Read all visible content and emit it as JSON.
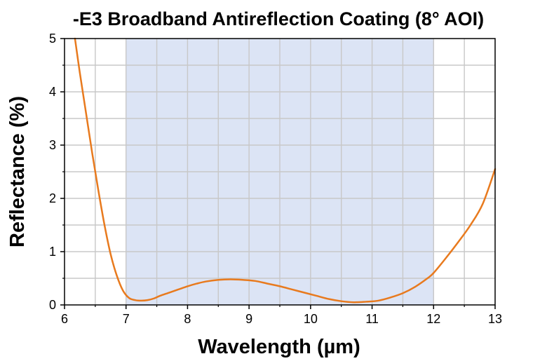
{
  "chart_data": {
    "type": "line",
    "title": "-E3 Broadband Antireflection Coating (8° AOI)",
    "xlabel": "Wavelength (µm)",
    "ylabel": "Reflectance (%)",
    "xlim": [
      6,
      13
    ],
    "ylim": [
      0,
      5
    ],
    "xticks": [
      "6",
      "7",
      "8",
      "9",
      "10",
      "11",
      "12",
      "13"
    ],
    "yticks": [
      "0",
      "1",
      "2",
      "3",
      "4",
      "5"
    ],
    "grid": true,
    "legend": "none",
    "highlight_band": {
      "x_start": 7.0,
      "x_end": 12.0,
      "color": "#dce4f5"
    },
    "series": [
      {
        "color": "#e87a1e",
        "x": [
          6.17,
          6.25,
          6.35,
          6.45,
          6.55,
          6.65,
          6.75,
          6.85,
          6.95,
          7.05,
          7.15,
          7.25,
          7.35,
          7.45,
          7.55,
          7.7,
          7.85,
          8.0,
          8.15,
          8.3,
          8.5,
          8.7,
          8.9,
          9.1,
          9.3,
          9.5,
          9.7,
          9.9,
          10.1,
          10.3,
          10.5,
          10.7,
          10.9,
          11.1,
          11.3,
          11.5,
          11.7,
          11.9,
          12.0,
          12.2,
          12.4,
          12.6,
          12.8,
          13.0
        ],
        "y": [
          5.0,
          4.35,
          3.6,
          2.85,
          2.15,
          1.5,
          0.95,
          0.55,
          0.27,
          0.13,
          0.09,
          0.08,
          0.09,
          0.12,
          0.17,
          0.23,
          0.29,
          0.35,
          0.4,
          0.44,
          0.47,
          0.48,
          0.47,
          0.45,
          0.4,
          0.35,
          0.29,
          0.23,
          0.17,
          0.11,
          0.07,
          0.05,
          0.06,
          0.08,
          0.14,
          0.22,
          0.34,
          0.5,
          0.6,
          0.88,
          1.18,
          1.5,
          1.9,
          2.55
        ]
      }
    ]
  }
}
